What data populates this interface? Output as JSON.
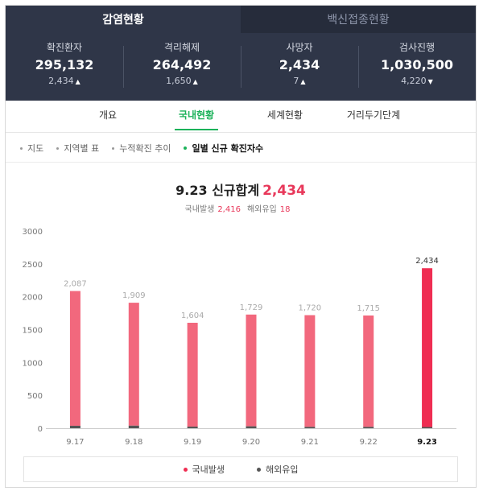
{
  "top_tabs": [
    {
      "label": "감염현황",
      "active": true
    },
    {
      "label": "백신접종현황",
      "active": false
    }
  ],
  "stats": [
    {
      "label": "확진환자",
      "value": "295,132",
      "change": "2,434",
      "direction": "up"
    },
    {
      "label": "격리해제",
      "value": "264,492",
      "change": "1,650",
      "direction": "up"
    },
    {
      "label": "사망자",
      "value": "2,434",
      "change": "7",
      "direction": "up"
    },
    {
      "label": "검사진행",
      "value": "1,030,500",
      "change": "4,220",
      "direction": "down"
    }
  ],
  "sub_nav": [
    {
      "label": "개요",
      "active": false
    },
    {
      "label": "국내현황",
      "active": true
    },
    {
      "label": "세계현황",
      "active": false
    },
    {
      "label": "거리두기단계",
      "active": false
    }
  ],
  "views": [
    {
      "label": "지도",
      "active": false
    },
    {
      "label": "지역별 표",
      "active": false
    },
    {
      "label": "누적확진 추이",
      "active": false
    },
    {
      "label": "일별 신규 확진자수",
      "active": true
    }
  ],
  "chart_header": {
    "date": "9.23",
    "title_text": "신규합계",
    "total": "2,434",
    "domestic_label": "국내발생",
    "domestic_value": "2,416",
    "overseas_label": "해외유입",
    "overseas_value": "18"
  },
  "colors": {
    "domestic": "#f2687d",
    "domestic_highlight": "#ef2d52",
    "overseas": "#555555",
    "accent_green": "#1bb25a"
  },
  "chart_data": {
    "type": "bar",
    "stacked": true,
    "categories": [
      "9.17",
      "9.18",
      "9.19",
      "9.20",
      "9.21",
      "9.22",
      "9.23"
    ],
    "totals": [
      2087,
      1909,
      1604,
      1729,
      1720,
      1715,
      2434
    ],
    "total_labels": [
      "2,087",
      "1,909",
      "1,604",
      "1,729",
      "1,720",
      "1,715",
      "2,434"
    ],
    "series": [
      {
        "name": "국내발생",
        "values": [
          2050,
          1870,
          1580,
          1700,
          1700,
          1695,
          2416
        ]
      },
      {
        "name": "해외유입",
        "values": [
          37,
          39,
          24,
          29,
          20,
          20,
          18
        ]
      }
    ],
    "yticks": [
      0,
      500,
      1000,
      1500,
      2000,
      2500,
      3000
    ],
    "ytick_labels": [
      "0",
      "500",
      "1000",
      "1500",
      "2000",
      "2500",
      "3000"
    ],
    "ylim": [
      0,
      3000
    ],
    "highlight_index": 6,
    "legend_placement": "bottom",
    "grid": false
  },
  "legend": [
    {
      "label": "국내발생"
    },
    {
      "label": "해외유입"
    }
  ]
}
